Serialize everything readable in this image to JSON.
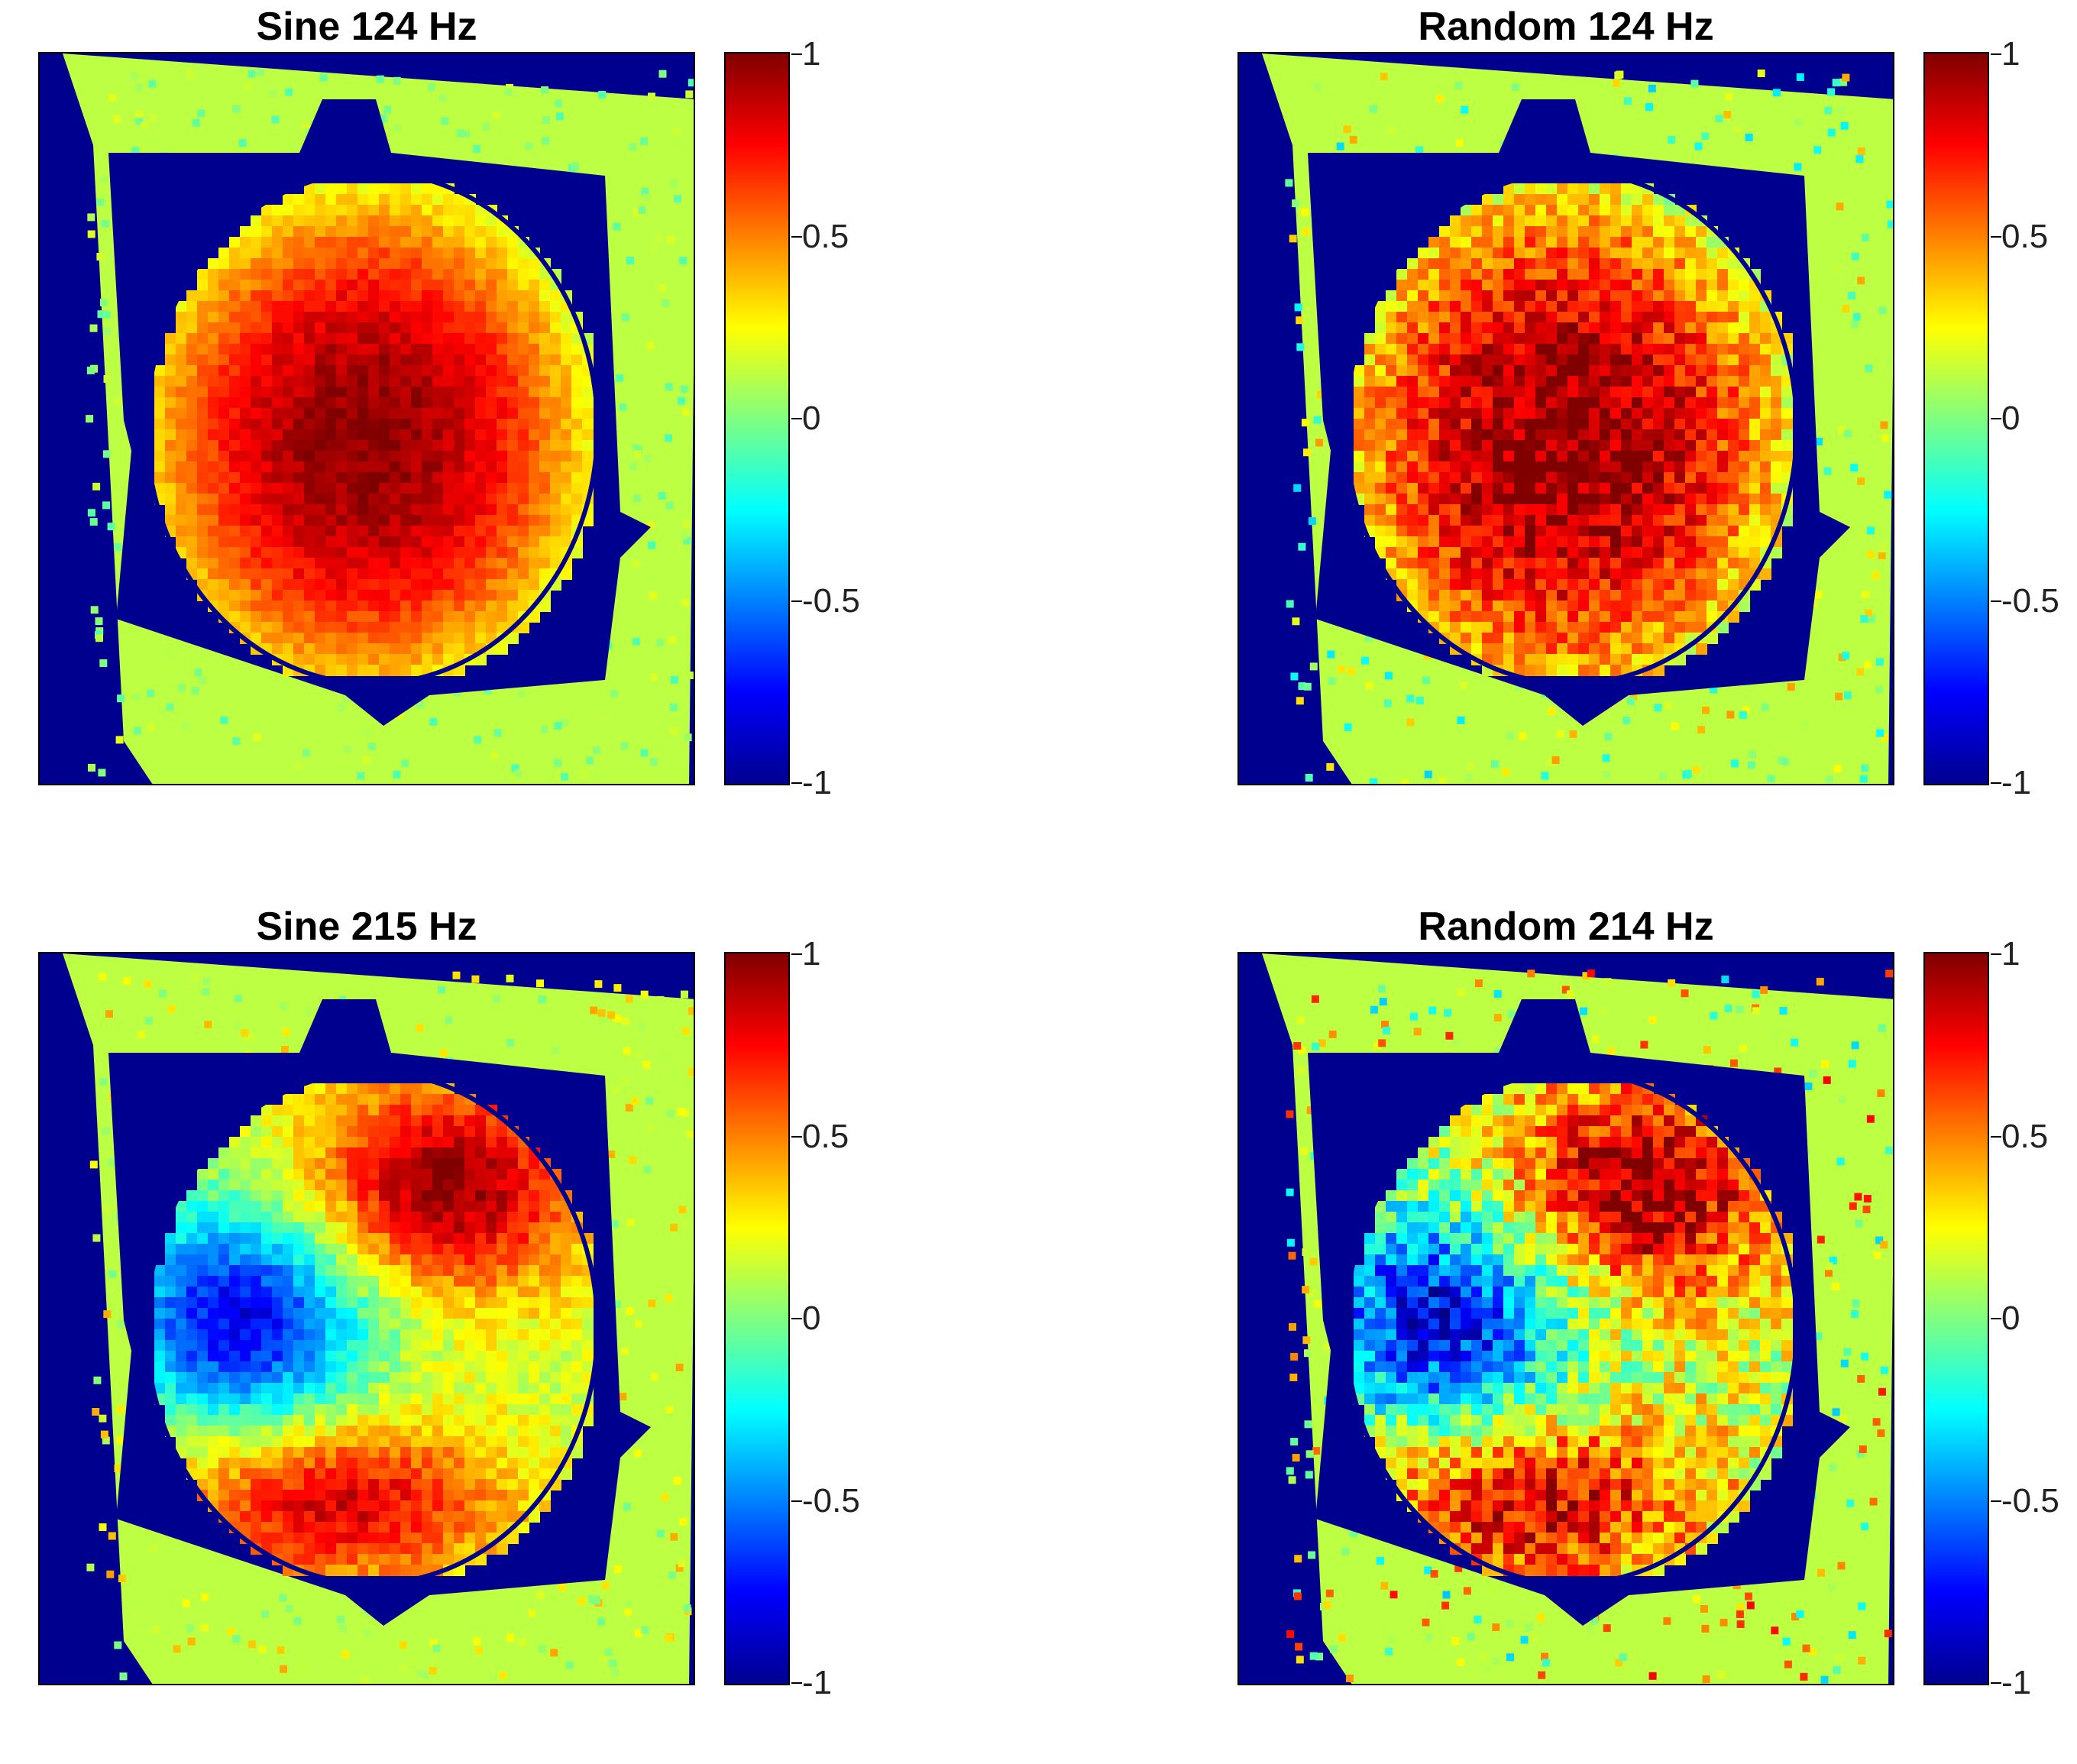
{
  "chart_data": [
    {
      "type": "heatmap",
      "title": "Sine 124 Hz",
      "colorbar": {
        "ticks": [
          1,
          0.5,
          0,
          -0.5,
          -1
        ],
        "tick_labels": [
          "1",
          "0.5",
          "0",
          "-0.5",
          "-1"
        ],
        "range": [
          -1,
          1
        ],
        "colormap": "jet"
      },
      "pattern": "single",
      "noise": 0.04
    },
    {
      "type": "heatmap",
      "title": "Random 124 Hz",
      "colorbar": {
        "ticks": [
          1,
          0.5,
          0,
          -0.5,
          -1
        ],
        "tick_labels": [
          "1",
          "0.5",
          "0",
          "-0.5",
          "-1"
        ],
        "range": [
          -1,
          1
        ],
        "colormap": "jet"
      },
      "pattern": "single",
      "noise": 0.1
    },
    {
      "type": "heatmap",
      "title": "Sine 215 Hz",
      "colorbar": {
        "ticks": [
          1,
          0.5,
          0,
          -0.5,
          -1
        ],
        "tick_labels": [
          "1",
          "0.5",
          "0",
          "-0.5",
          "-1"
        ],
        "range": [
          -1,
          1
        ],
        "colormap": "jet"
      },
      "pattern": "double",
      "noise": 0.06
    },
    {
      "type": "heatmap",
      "title": "Random 214 Hz",
      "colorbar": {
        "ticks": [
          1,
          0.5,
          0,
          -0.5,
          -1
        ],
        "tick_labels": [
          "1",
          "0.5",
          "0",
          "-0.5",
          "-1"
        ],
        "range": [
          -1,
          1
        ],
        "colormap": "jet"
      },
      "pattern": "double",
      "noise": 0.14
    }
  ]
}
